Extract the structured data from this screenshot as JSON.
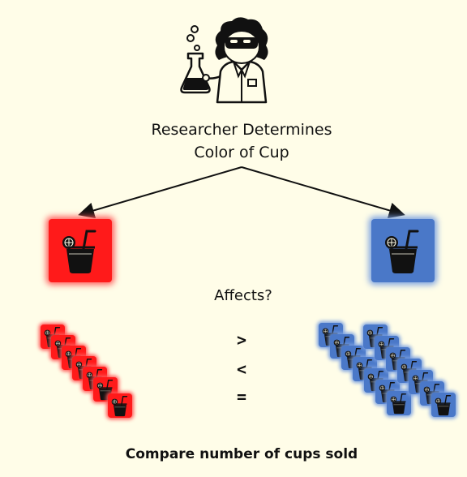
{
  "title_line1": "Researcher Determines",
  "title_line2": "Color of Cup",
  "question": "Affects?",
  "comparison_symbols": [
    ">",
    "<",
    "="
  ],
  "footer": "Compare number of cups sold",
  "colors": {
    "background": "#fffde8",
    "red_cup": "#ff1a1a",
    "blue_cup": "#4a78c8",
    "red_glow": "#ff5a5a",
    "blue_glow": "#7aa0e0"
  },
  "icons": {
    "researcher": "researcher-with-flask-icon",
    "cup": "drink-cup-icon"
  },
  "red_group_count": 7,
  "blue_group_count": 14
}
